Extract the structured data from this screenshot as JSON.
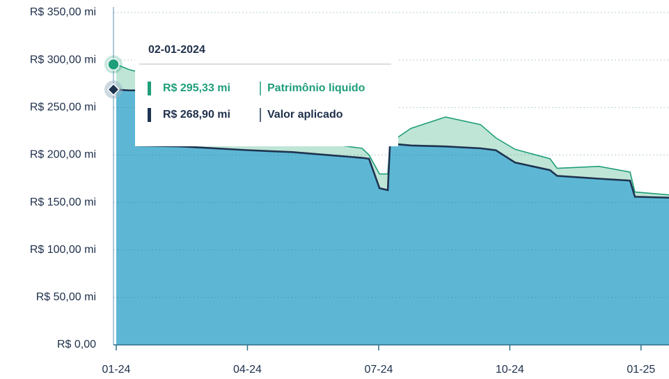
{
  "chart_data": {
    "type": "area",
    "x": [
      0,
      0.29,
      0.45,
      0.46,
      1.48,
      3.03,
      4.03,
      4.82,
      5.62,
      5.78,
      6.02,
      6.21,
      6.26,
      6.74,
      7.53,
      8.33,
      8.68,
      9.12,
      9.92,
      10.08,
      11.04,
      11.75,
      11.86,
      12.64
    ],
    "series": [
      {
        "name": "Patrimônio liquido",
        "color": "#1f9e7a",
        "fill": "#bfe5d6",
        "values": [
          295.33,
          290,
          288,
          232,
          222,
          215,
          213,
          212,
          207,
          200,
          180,
          180,
          213,
          228,
          240,
          232,
          218,
          206,
          196,
          186,
          188,
          182,
          161,
          158
        ]
      },
      {
        "name": "Valor aplicado",
        "color": "#1e3350",
        "fill": "#5db7d4",
        "values": [
          268.9,
          268,
          268,
          210,
          209,
          205,
          203,
          200,
          197,
          196,
          165,
          163,
          212,
          210,
          209,
          207,
          205,
          192,
          184,
          178,
          175,
          173,
          156,
          155
        ]
      }
    ],
    "xlim": [
      0,
      12.64
    ],
    "xticks": [
      {
        "value": 0,
        "label": "01-24"
      },
      {
        "value": 3,
        "label": "04-24"
      },
      {
        "value": 6,
        "label": "07-24"
      },
      {
        "value": 9,
        "label": "10-24"
      },
      {
        "value": 12,
        "label": "01-25"
      }
    ],
    "ylim": [
      0,
      350
    ],
    "yticks": [
      {
        "value": 0,
        "label": "R$ 0,00"
      },
      {
        "value": 50,
        "label": "R$ 50,00 mi"
      },
      {
        "value": 100,
        "label": "R$ 100,00 mi"
      },
      {
        "value": 150,
        "label": "R$ 150,00 mi"
      },
      {
        "value": 200,
        "label": "R$ 200,00 mi"
      },
      {
        "value": 250,
        "label": "R$ 250,00 mi"
      },
      {
        "value": 300,
        "label": "R$ 300,00 mi"
      },
      {
        "value": 350,
        "label": "R$ 350,00 mi"
      }
    ],
    "grid": true,
    "tooltip": {
      "date": "02-01-2024",
      "value_labels": [
        "R$ 295,33 mi",
        "R$ 268,90 mi"
      ]
    }
  }
}
